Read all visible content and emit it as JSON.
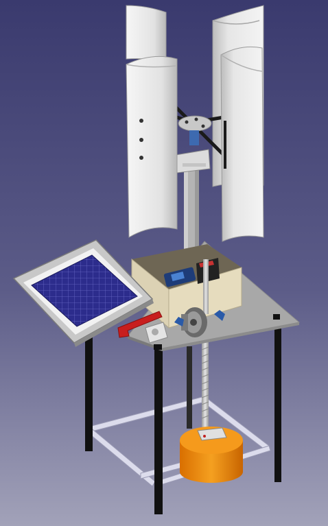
{
  "scene": {
    "background_top": "#3a3a6e",
    "background_bottom": "#a2a2b9",
    "components": [
      {
        "name": "savonius-rotor",
        "color": "#e8e8e8"
      },
      {
        "name": "rotor-hub",
        "color": "#c8c8c8"
      },
      {
        "name": "mast",
        "color": "#b4b4b4"
      },
      {
        "name": "table-top",
        "color": "#a8a8a8"
      },
      {
        "name": "table-legs",
        "color": "#111111"
      },
      {
        "name": "bottom-frame",
        "color": "#dcdcec"
      },
      {
        "name": "solar-panel",
        "color": "#2c2c8c"
      },
      {
        "name": "control-box",
        "color": "#dcd2b4"
      },
      {
        "name": "threaded-rod",
        "color": "#c8c8c8"
      },
      {
        "name": "counterweight",
        "color": "#f08c0a"
      },
      {
        "name": "red-clamp",
        "color": "#c81e1e"
      }
    ]
  }
}
